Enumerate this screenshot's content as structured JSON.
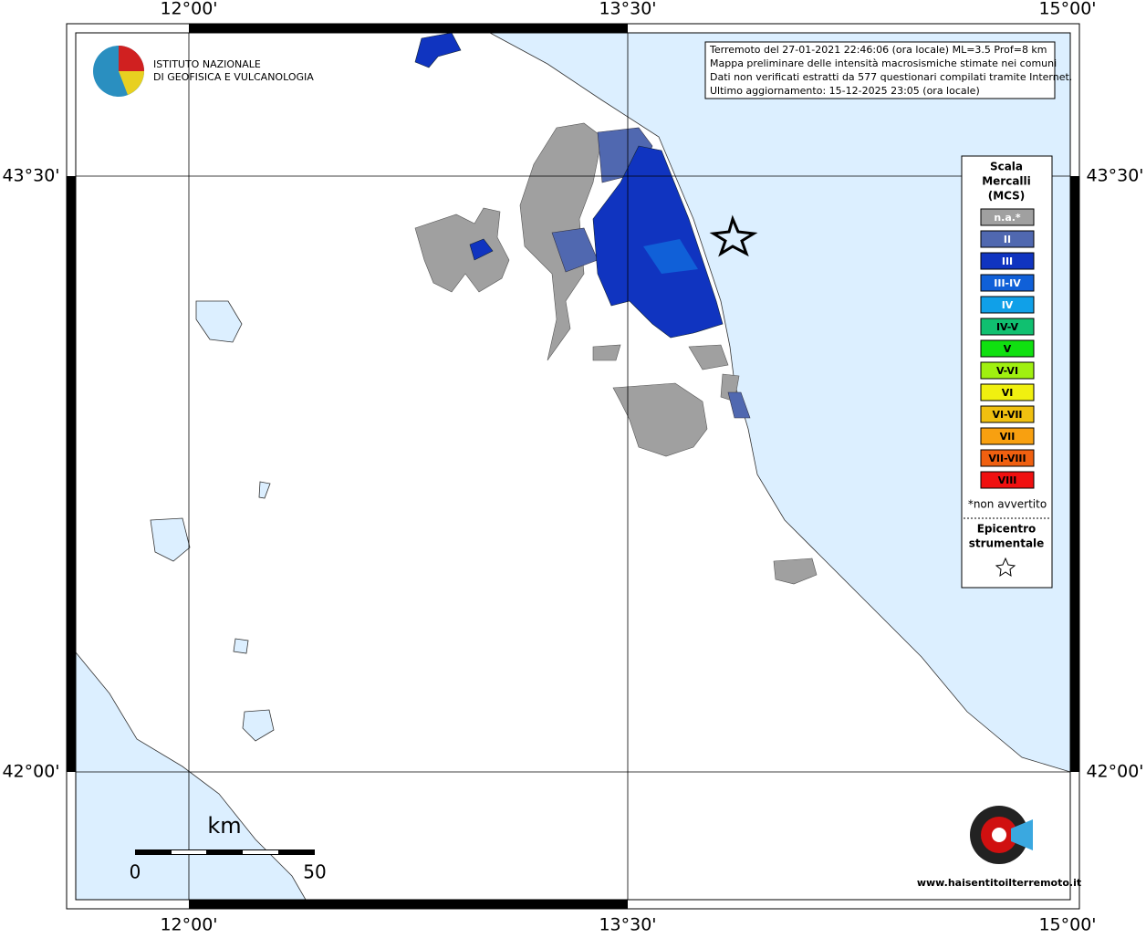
{
  "map": {
    "x_labels": [
      "12°00'",
      "13°30'",
      "15°00'"
    ],
    "y_labels": [
      "43°30'",
      "42°00'"
    ],
    "logo": [
      "ISTITUTO NAZIONALE",
      "DI GEOFISICA E VULCANOLOGIA"
    ],
    "info": [
      "Terremoto del 27-01-2021 22:46:06 (ora locale) ML=3.5 Prof=8 km",
      "Mappa preliminare delle intensità macrosismiche stimate nei comuni",
      "Dati non verificati estratti da 577 questionari compilati tramite Internet.",
      "Ultimo aggiornamento: 15-12-2025 23:05 (ora locale)"
    ],
    "legend": {
      "title": [
        "Scala",
        "Mercalli",
        "(MCS)"
      ],
      "items": [
        {
          "label": "n.a.*",
          "color": "#a0a0a0"
        },
        {
          "label": "II",
          "color": "#5068b0"
        },
        {
          "label": "III",
          "color": "#1034c0"
        },
        {
          "label": "III-IV",
          "color": "#1060d8"
        },
        {
          "label": "IV",
          "color": "#10a0e8"
        },
        {
          "label": "IV-V",
          "color": "#10c070"
        },
        {
          "label": "V",
          "color": "#10e010"
        },
        {
          "label": "V-VI",
          "color": "#a0f010"
        },
        {
          "label": "VI",
          "color": "#f0f010"
        },
        {
          "label": "VI-VII",
          "color": "#f0c010"
        },
        {
          "label": "VII",
          "color": "#f8a010"
        },
        {
          "label": "VII-VIII",
          "color": "#f06010"
        },
        {
          "label": "VIII",
          "color": "#f01010"
        }
      ],
      "note": "*non avvertito",
      "epicentre": [
        "Epicentro",
        "strumentale"
      ]
    },
    "scale": {
      "unit": "km",
      "labels": [
        "0",
        "50"
      ]
    },
    "watermark": "www.haisentitoilterremoto.it"
  }
}
